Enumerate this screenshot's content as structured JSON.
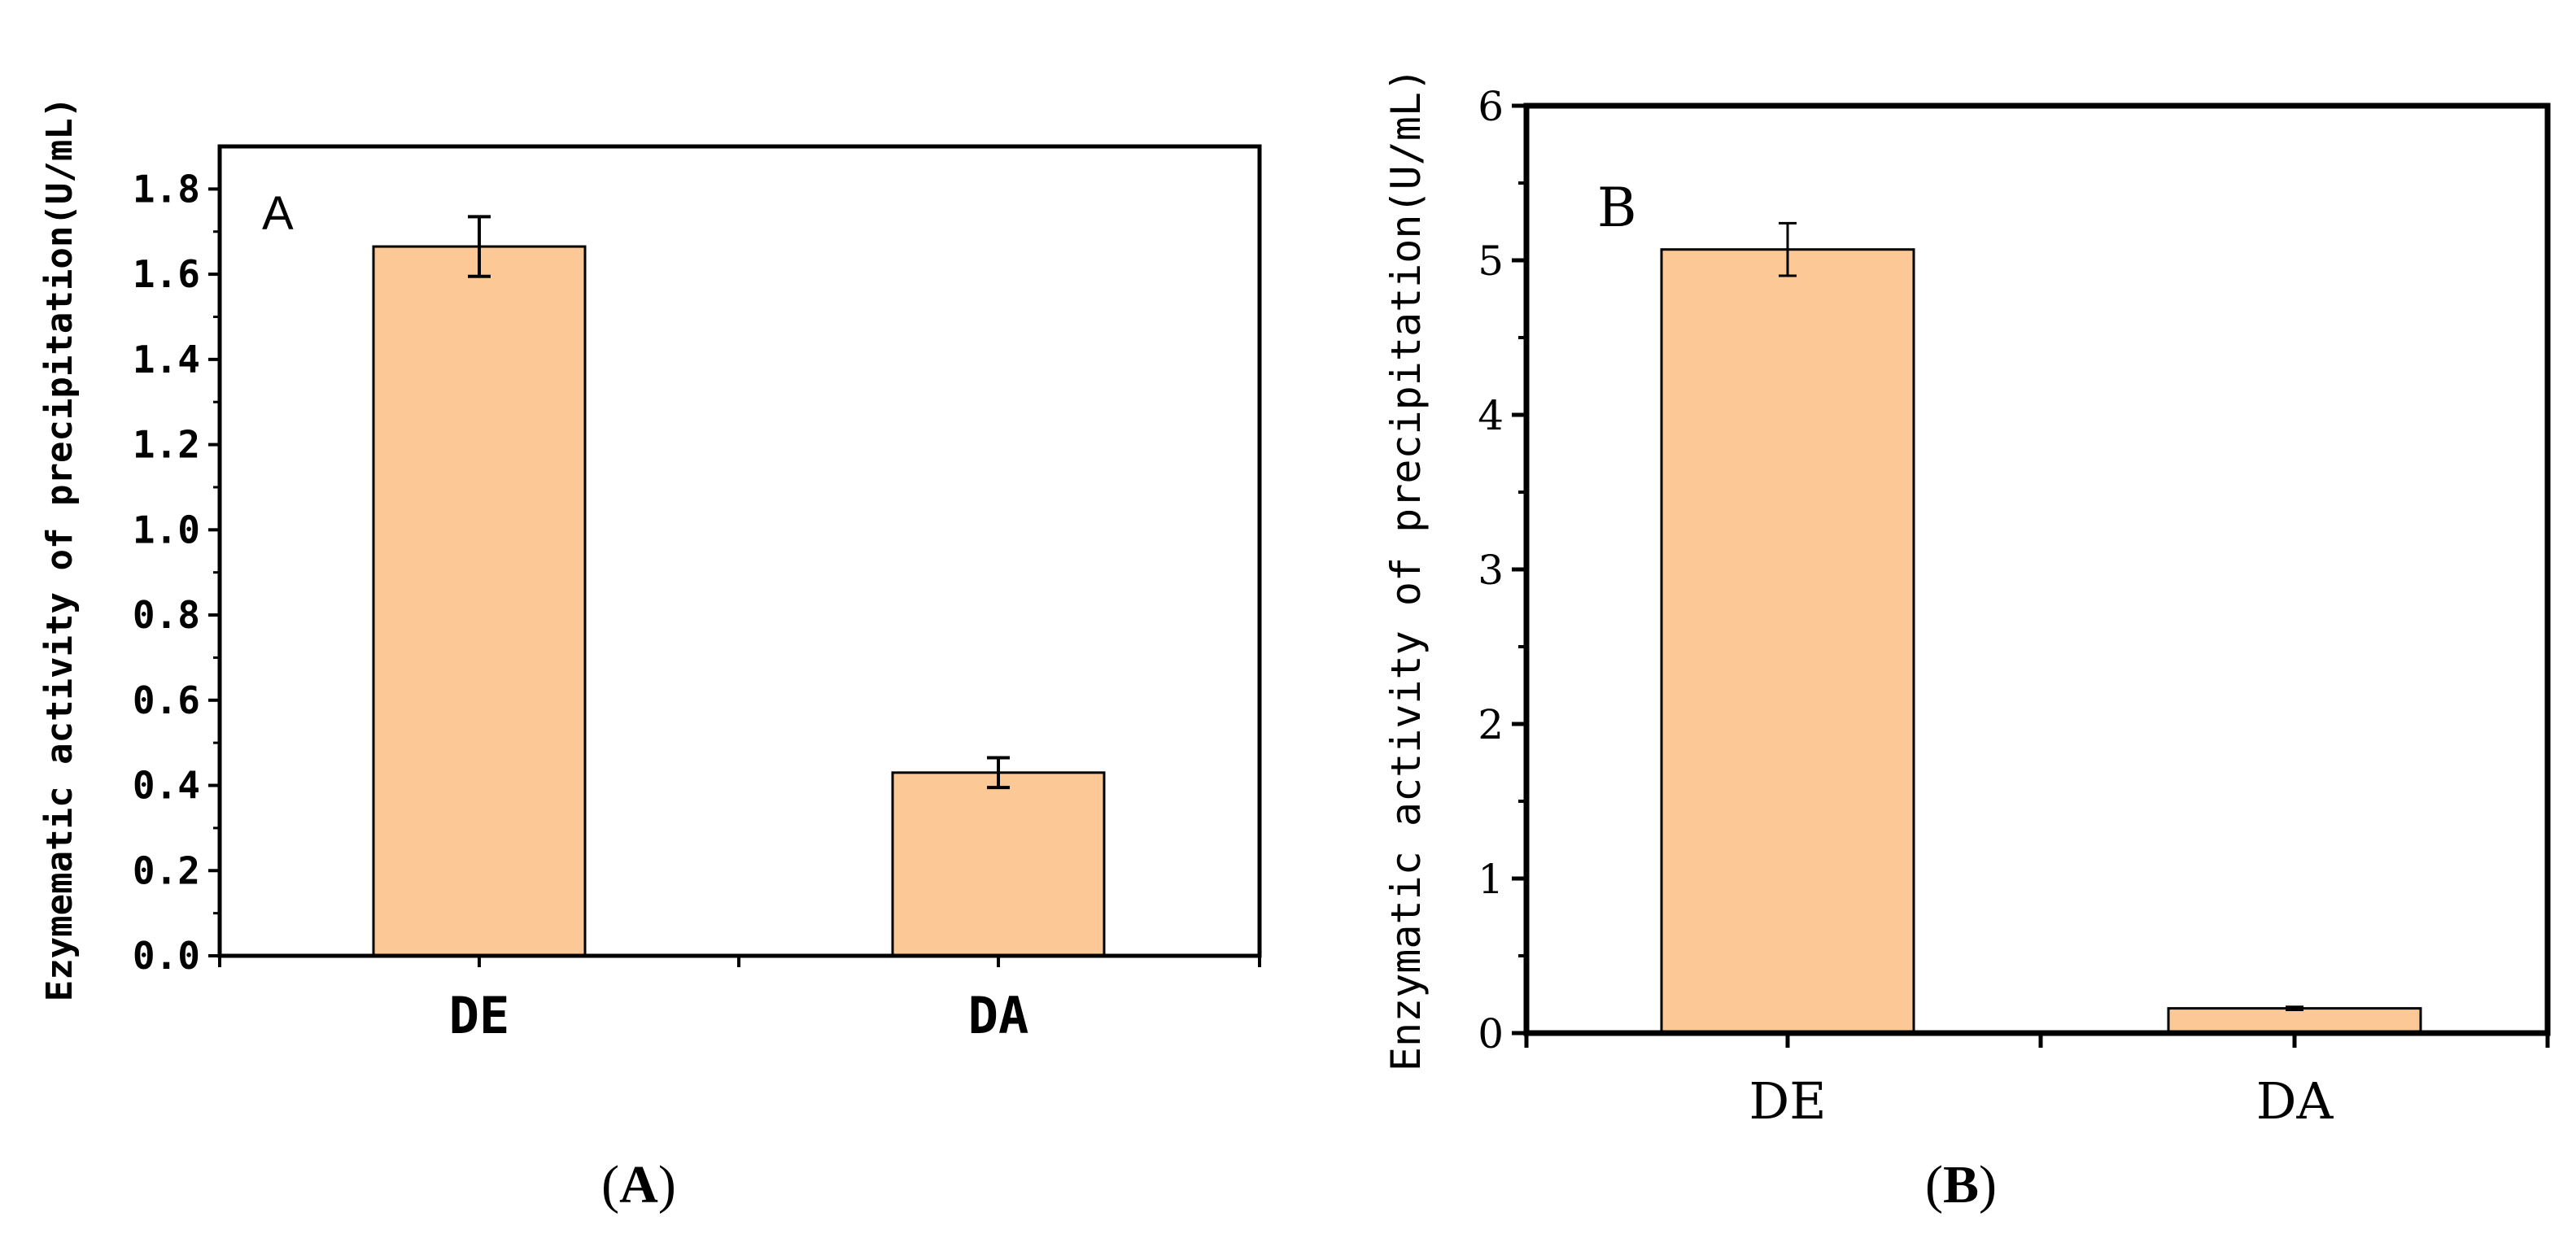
{
  "colors": {
    "bar_fill": "#FCC895",
    "axis": "#000000",
    "error_bar": "#000000"
  },
  "chart_data": [
    {
      "type": "bar",
      "panel_label": "A",
      "caption_label": "A",
      "title": "",
      "xlabel": "",
      "ylabel": "Ezymematic activity of precipitation(U/mL)",
      "ylim": [
        0,
        1.9
      ],
      "ytick_values": [
        0.0,
        0.2,
        0.4,
        0.6,
        0.8,
        1.0,
        1.2,
        1.4,
        1.6,
        1.8
      ],
      "ytick_labels": [
        "0.0",
        "0.2",
        "0.4",
        "0.6",
        "0.8",
        "1.0",
        "1.2",
        "1.4",
        "1.6",
        "1.8"
      ],
      "categories": [
        "DE",
        "DA"
      ],
      "values": [
        1.665,
        0.43
      ],
      "errors": [
        0.07,
        0.035
      ],
      "grid": false,
      "legend": "none"
    },
    {
      "type": "bar",
      "panel_label": "B",
      "caption_label": "B",
      "title": "",
      "xlabel": "",
      "ylabel": "Enzymatic activity of precipitation(U/mL)",
      "ylim": [
        0,
        6
      ],
      "ytick_values": [
        0,
        1,
        2,
        3,
        4,
        5,
        6
      ],
      "ytick_labels": [
        "0",
        "1",
        "2",
        "3",
        "4",
        "5",
        "6"
      ],
      "categories": [
        "DE",
        "DA"
      ],
      "values": [
        5.07,
        0.16
      ],
      "errors": [
        0.17,
        0.01
      ],
      "grid": false,
      "legend": "none"
    }
  ]
}
